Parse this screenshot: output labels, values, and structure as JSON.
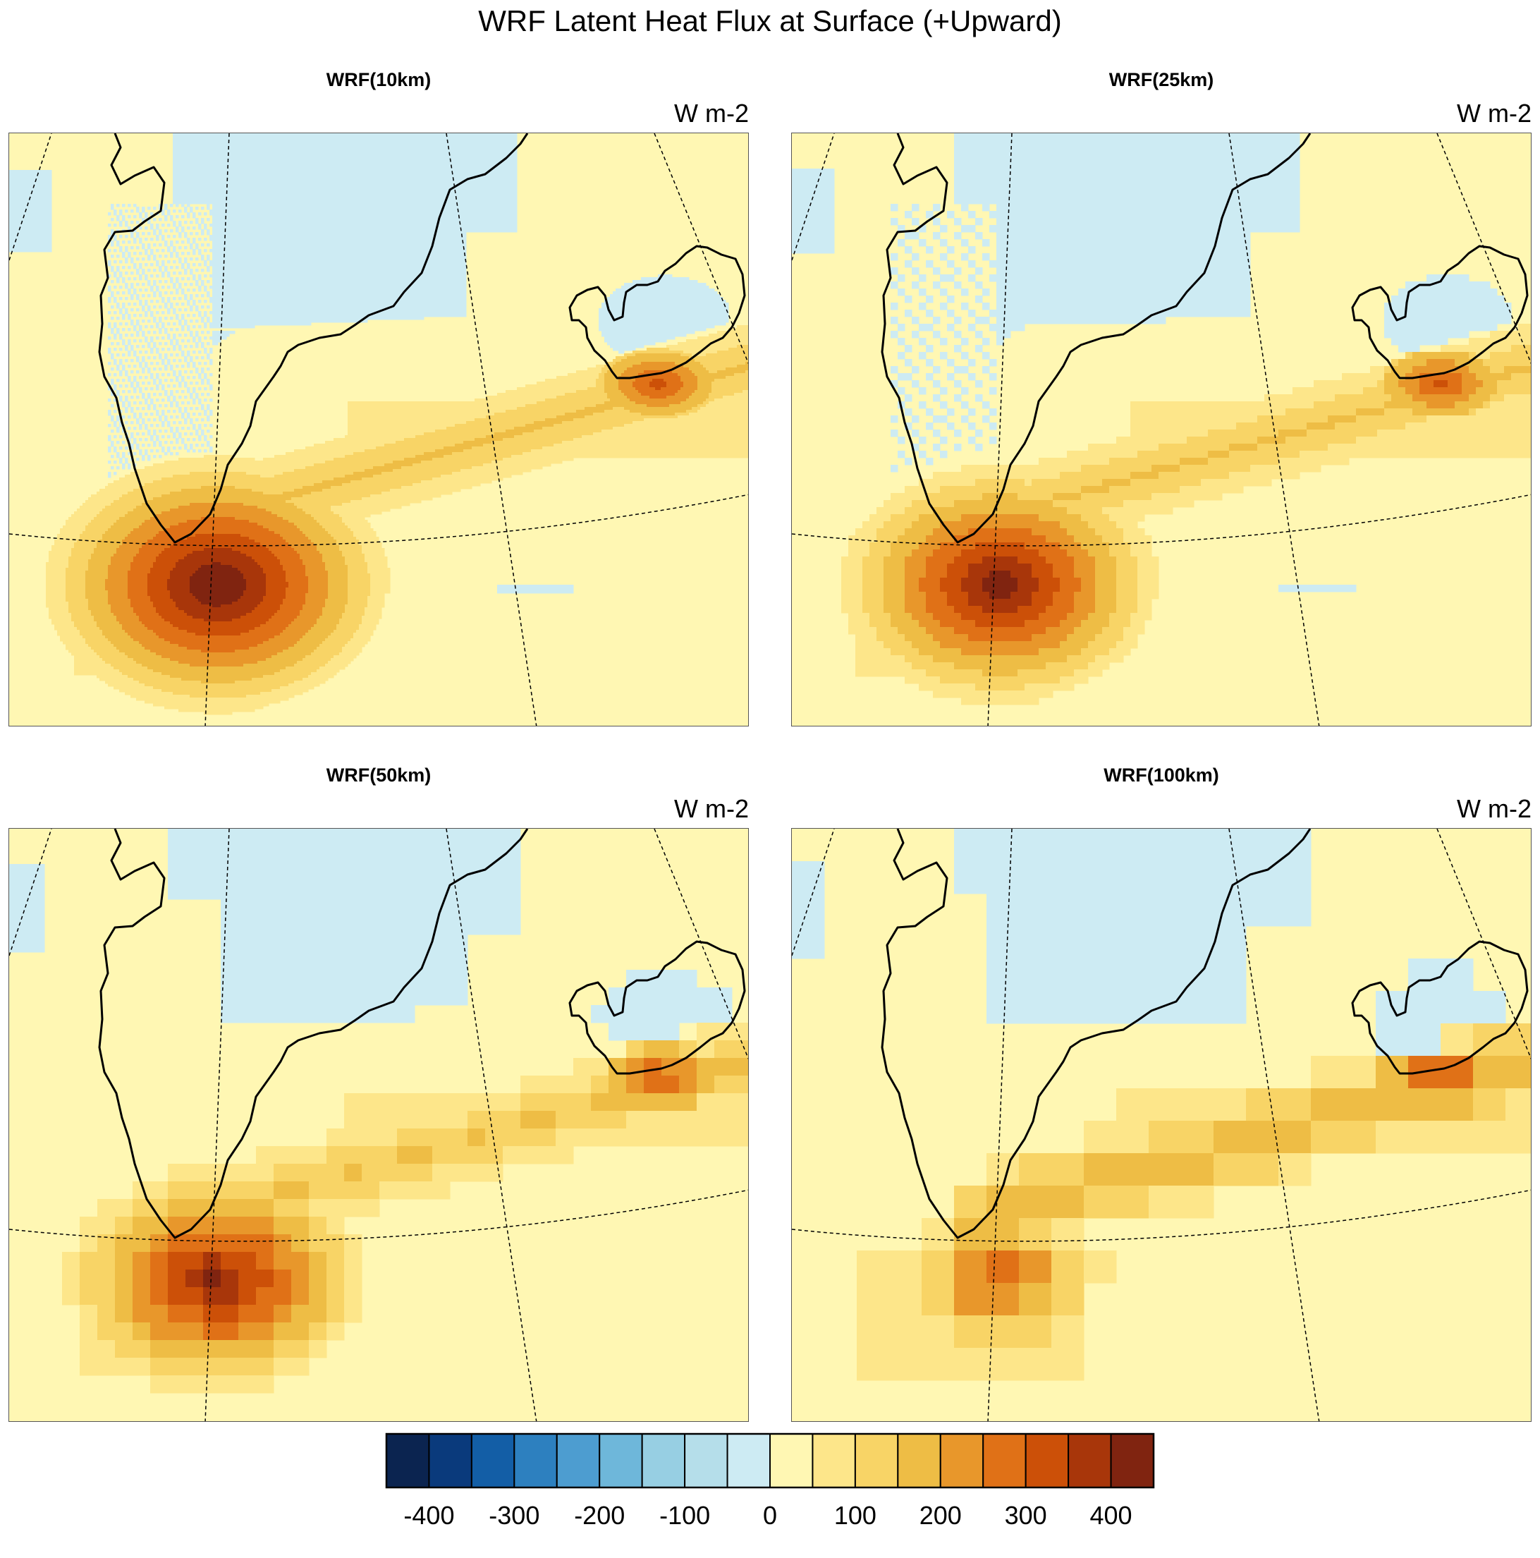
{
  "title": "WRF Latent Heat Flux at Surface (+Upward)",
  "panels": [
    {
      "label": "WRF(10km)",
      "units": "W m-2"
    },
    {
      "label": "WRF(25km)",
      "units": "W m-2"
    },
    {
      "label": "WRF(50km)",
      "units": "W m-2"
    },
    {
      "label": "WRF(100km)",
      "units": "W m-2"
    }
  ],
  "colorbar": {
    "tick_labels": [
      "-400",
      "-300",
      "-200",
      "-100",
      "0",
      "100",
      "200",
      "300",
      "400"
    ],
    "colors": [
      "#0b2450",
      "#0a3a7c",
      "#135ea6",
      "#2d80bf",
      "#4d9dd0",
      "#6eb7da",
      "#97cfe3",
      "#b5deea",
      "#cdebf3",
      "#fff7b3",
      "#fde68a",
      "#f8d466",
      "#eebd45",
      "#e8972b",
      "#e07117",
      "#cc5008",
      "#a8360a",
      "#802410"
    ]
  },
  "colors": {
    "ocean_negative": "#cdebf3",
    "low_positive": "#fff7b3",
    "land_outline": "#000000"
  }
}
